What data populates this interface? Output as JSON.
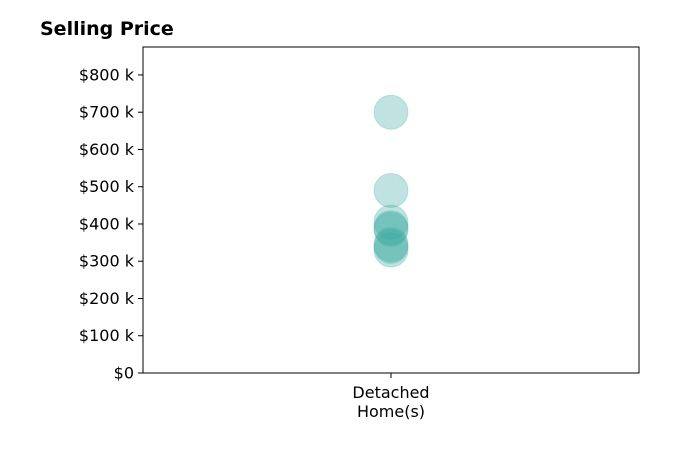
{
  "chart_data": {
    "type": "scatter",
    "title": "Selling Price",
    "xlabel": "",
    "ylabel": "",
    "categories": [
      "Detached\nHome(s)"
    ],
    "y_tick_values": [
      0,
      100000,
      200000,
      300000,
      400000,
      500000,
      600000,
      700000,
      800000
    ],
    "y_tick_labels": [
      "$0",
      "$100 k",
      "$200 k",
      "$300 k",
      "$400 k",
      "$500 k",
      "$600 k",
      "$700 k",
      "$800 k"
    ],
    "ylim": [
      0,
      875000
    ],
    "grid": false,
    "legend": "none",
    "series": [
      {
        "category": "Detached\nHome(s)",
        "values": [
          700000,
          490000,
          405000,
          390000,
          385000,
          345000,
          340000,
          330000
        ],
        "color": "#3aaba1",
        "opacity": 0.33
      }
    ]
  }
}
